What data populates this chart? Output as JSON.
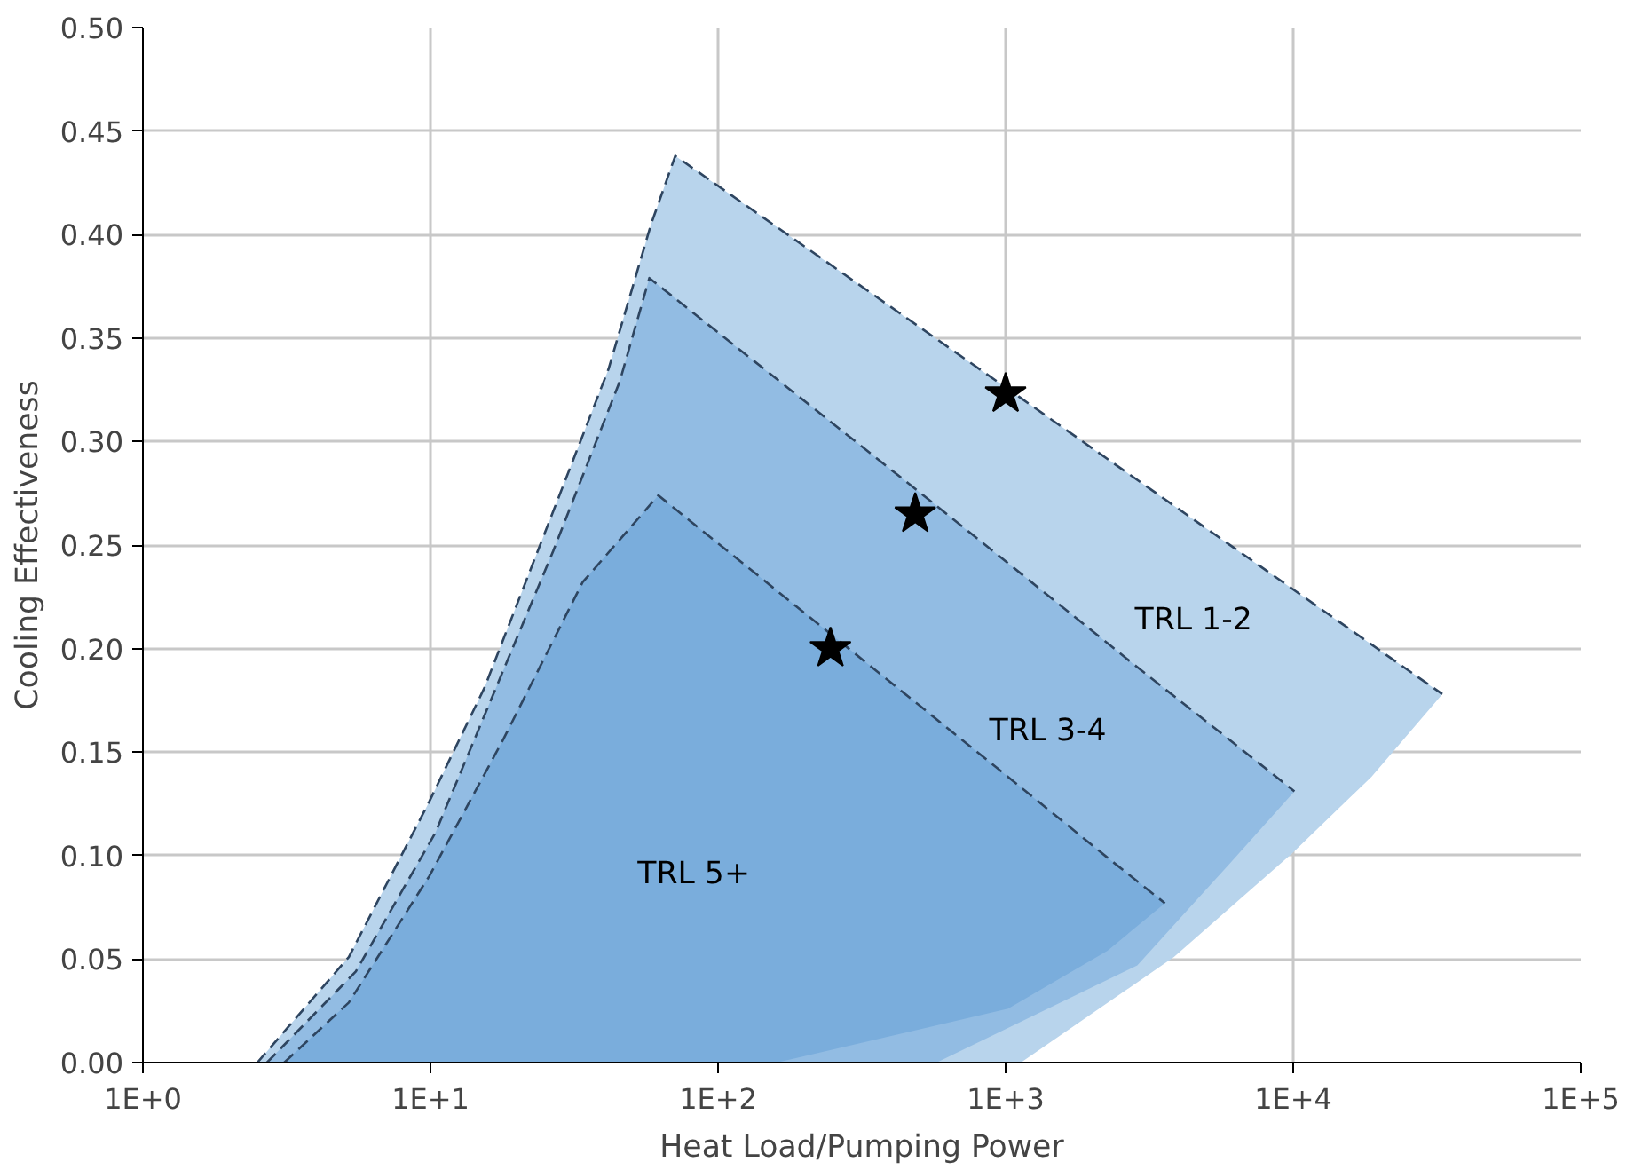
{
  "chart_data": {
    "type": "line",
    "xlabel": "Heat Load/Pumping Power",
    "ylabel": "Cooling Effectiveness",
    "log": "x",
    "grid": true,
    "xlim": [
      1,
      100000
    ],
    "xticks": [
      {
        "value": 1,
        "label": "1E+0"
      },
      {
        "value": 10,
        "label": "1E+1"
      },
      {
        "value": 100,
        "label": "1E+2"
      },
      {
        "value": 1000,
        "label": "1E+3"
      },
      {
        "value": 10000,
        "label": "1E+4"
      },
      {
        "value": 100000,
        "label": "1E+5"
      }
    ],
    "ylim": [
      0,
      0.5
    ],
    "yticks": [
      {
        "value": 0,
        "label": "0.00"
      },
      {
        "value": 0.05,
        "label": "0.05"
      },
      {
        "value": 0.1,
        "label": "0.10"
      },
      {
        "value": 0.15,
        "label": "0.15"
      },
      {
        "value": 0.2,
        "label": "0.20"
      },
      {
        "value": 0.25,
        "label": "0.25"
      },
      {
        "value": 0.3,
        "label": "0.30"
      },
      {
        "value": 0.35,
        "label": "0.35"
      },
      {
        "value": 0.4,
        "label": "0.40"
      },
      {
        "value": 0.45,
        "label": "0.45"
      },
      {
        "value": 0.5,
        "label": "0.50"
      }
    ],
    "series": [
      {
        "color": "#2e4560",
        "colors": [
          "#b8d4ec",
          "#b8d4ec",
          "#b8d4ec",
          "#b8d4ec",
          "#b8d4ec",
          "#b8d4ec",
          "#b8d4ec",
          "#b8d4ec",
          "#b8d4ec",
          "#b8d4ec",
          "#b8d4ec",
          "#b8d4ec",
          "#b8d4ec"
        ],
        "line_style": "dashed",
        "x": [
          2.5,
          5.2,
          9.9,
          15.4,
          25,
          41.6,
          58.5,
          71,
          1130,
          3850,
          9900,
          18700,
          33000
        ],
        "values": [
          0,
          0.051,
          0.126,
          0.181,
          0.256,
          0.335,
          0.405,
          0.438,
          0.321,
          0.269,
          0.229,
          0.202,
          0.178
        ],
        "upper": [
          0,
          0.051,
          0.126,
          0.181,
          0.256,
          0.335,
          0.405,
          0.438,
          0.321,
          0.269,
          0.229,
          0.202,
          0.178
        ],
        "lower": [
          0,
          0,
          0,
          0,
          0,
          0,
          0,
          0,
          0,
          0.051,
          0.101,
          0.138,
          0.178
        ]
      },
      {
        "color": "#2e4560",
        "colors": [
          "#92bce3",
          "#92bce3",
          "#92bce3",
          "#92bce3",
          "#92bce3",
          "#92bce3",
          "#92bce3",
          "#92bce3",
          "#92bce3",
          "#92bce3"
        ],
        "line_style": "dashed",
        "x": [
          2.7,
          5.5,
          10.4,
          26.7,
          45.5,
          57.7,
          575,
          2870,
          6000,
          10100
        ],
        "values": [
          0,
          0.044,
          0.111,
          0.247,
          0.329,
          0.379,
          0.269,
          0.191,
          0.156,
          0.131
        ],
        "upper": [
          0,
          0.044,
          0.111,
          0.247,
          0.329,
          0.379,
          0.269,
          0.191,
          0.156,
          0.131
        ],
        "lower": [
          0,
          0,
          0,
          0,
          0,
          0,
          0,
          0.047,
          0.096,
          0.131
        ]
      },
      {
        "color": "#2e4560",
        "colors": [
          "#7aaddc",
          "#7aaddc",
          "#7aaddc",
          "#7aaddc",
          "#7aaddc",
          "#7aaddc",
          "#7aaddc",
          "#7aaddc",
          "#7aaddc",
          "#7aaddc"
        ],
        "line_style": "dashed",
        "x": [
          3.1,
          5.2,
          9.9,
          17.9,
          33.8,
          62,
          160,
          1020,
          2260,
          3580
        ],
        "values": [
          0,
          0.029,
          0.09,
          0.156,
          0.232,
          0.274,
          0.228,
          0.138,
          0.099,
          0.077
        ],
        "upper": [
          0,
          0.029,
          0.09,
          0.156,
          0.232,
          0.274,
          0.228,
          0.138,
          0.099,
          0.077
        ],
        "lower": [
          0,
          0,
          0,
          0,
          0,
          0,
          0,
          0.026,
          0.054,
          0.077
        ]
      },
      {
        "type": "scatter",
        "color": "#000000",
        "marker": "star",
        "x": [
          1000,
          485,
          246
        ],
        "values": [
          0.323,
          0.265,
          0.2
        ]
      }
    ],
    "annotations": [
      "TRL 1-2",
      "TRL 3-4",
      "TRL 5+"
    ]
  }
}
